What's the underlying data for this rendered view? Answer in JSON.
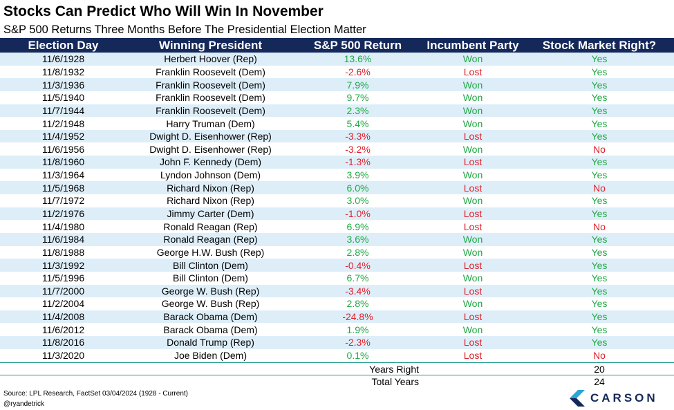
{
  "title": "Stocks Can Predict Who Will Win In November",
  "subtitle": "S&P 500 Returns Three Months Before The Presidential Election Matter",
  "headers": [
    "Election Day",
    "Winning President",
    "S&P 500 Return",
    "Incumbent Party",
    "Stock Market Right?"
  ],
  "rows": [
    {
      "date": "11/6/1928",
      "president": "Herbert Hoover (Rep)",
      "ret": "13.6%",
      "party": "Won",
      "right": "Yes"
    },
    {
      "date": "11/8/1932",
      "president": "Franklin Roosevelt (Dem)",
      "ret": "-2.6%",
      "party": "Lost",
      "right": "Yes"
    },
    {
      "date": "11/3/1936",
      "president": "Franklin Roosevelt (Dem)",
      "ret": "7.9%",
      "party": "Won",
      "right": "Yes"
    },
    {
      "date": "11/5/1940",
      "president": "Franklin Roosevelt (Dem)",
      "ret": "9.7%",
      "party": "Won",
      "right": "Yes"
    },
    {
      "date": "11/7/1944",
      "president": "Franklin Roosevelt (Dem)",
      "ret": "2.3%",
      "party": "Won",
      "right": "Yes"
    },
    {
      "date": "11/2/1948",
      "president": "Harry Truman (Dem)",
      "ret": "5.4%",
      "party": "Won",
      "right": "Yes"
    },
    {
      "date": "11/4/1952",
      "president": "Dwight D. Eisenhower (Rep)",
      "ret": "-3.3%",
      "party": "Lost",
      "right": "Yes"
    },
    {
      "date": "11/6/1956",
      "president": "Dwight D. Eisenhower (Rep)",
      "ret": "-3.2%",
      "party": "Won",
      "right": "No"
    },
    {
      "date": "11/8/1960",
      "president": "John F. Kennedy (Dem)",
      "ret": "-1.3%",
      "party": "Lost",
      "right": "Yes"
    },
    {
      "date": "11/3/1964",
      "president": "Lyndon Johnson (Dem)",
      "ret": "3.9%",
      "party": "Won",
      "right": "Yes"
    },
    {
      "date": "11/5/1968",
      "president": "Richard Nixon (Rep)",
      "ret": "6.0%",
      "party": "Lost",
      "right": "No"
    },
    {
      "date": "11/7/1972",
      "president": "Richard Nixon (Rep)",
      "ret": "3.0%",
      "party": "Won",
      "right": "Yes"
    },
    {
      "date": "11/2/1976",
      "president": "Jimmy Carter (Dem)",
      "ret": "-1.0%",
      "party": "Lost",
      "right": "Yes"
    },
    {
      "date": "11/4/1980",
      "president": "Ronald Reagan (Rep)",
      "ret": "6.9%",
      "party": "Lost",
      "right": "No"
    },
    {
      "date": "11/6/1984",
      "president": "Ronald Reagan (Rep)",
      "ret": "3.6%",
      "party": "Won",
      "right": "Yes"
    },
    {
      "date": "11/8/1988",
      "president": "George H.W. Bush (Rep)",
      "ret": "2.8%",
      "party": "Won",
      "right": "Yes"
    },
    {
      "date": "11/3/1992",
      "president": "Bill Clinton (Dem)",
      "ret": "-0.4%",
      "party": "Lost",
      "right": "Yes"
    },
    {
      "date": "11/5/1996",
      "president": "Bill Clinton (Dem)",
      "ret": "6.7%",
      "party": "Won",
      "right": "Yes"
    },
    {
      "date": "11/7/2000",
      "president": "George W. Bush (Rep)",
      "ret": "-3.4%",
      "party": "Lost",
      "right": "Yes"
    },
    {
      "date": "11/2/2004",
      "president": "George W. Bush (Rep)",
      "ret": "2.8%",
      "party": "Won",
      "right": "Yes"
    },
    {
      "date": "11/4/2008",
      "president": "Barack Obama (Dem)",
      "ret": "-24.8%",
      "party": "Lost",
      "right": "Yes"
    },
    {
      "date": "11/6/2012",
      "president": "Barack Obama (Dem)",
      "ret": "1.9%",
      "party": "Won",
      "right": "Yes"
    },
    {
      "date": "11/8/2016",
      "president": "Donald Trump (Rep)",
      "ret": "-2.3%",
      "party": "Lost",
      "right": "Yes"
    },
    {
      "date": "11/3/2020",
      "president": "Joe Biden (Dem)",
      "ret": "0.1%",
      "party": "Lost",
      "right": "No"
    }
  ],
  "summary": {
    "years_right_label": "Years Right",
    "years_right_value": "20",
    "total_years_label": "Total Years",
    "total_years_value": "24"
  },
  "footer": {
    "source": "Source: LPL Research, FactSet 03/04/2024  (1928 - Current)",
    "handle": "@ryandetrick",
    "logo_text": "CARSON",
    "logo_icon": "carson-chevron-icon"
  },
  "colors": {
    "header_bg": "#14285a",
    "stripe": "#ddeef9",
    "positive": "#22a845",
    "negative": "#e0202a",
    "rule": "#1d9a8a"
  }
}
